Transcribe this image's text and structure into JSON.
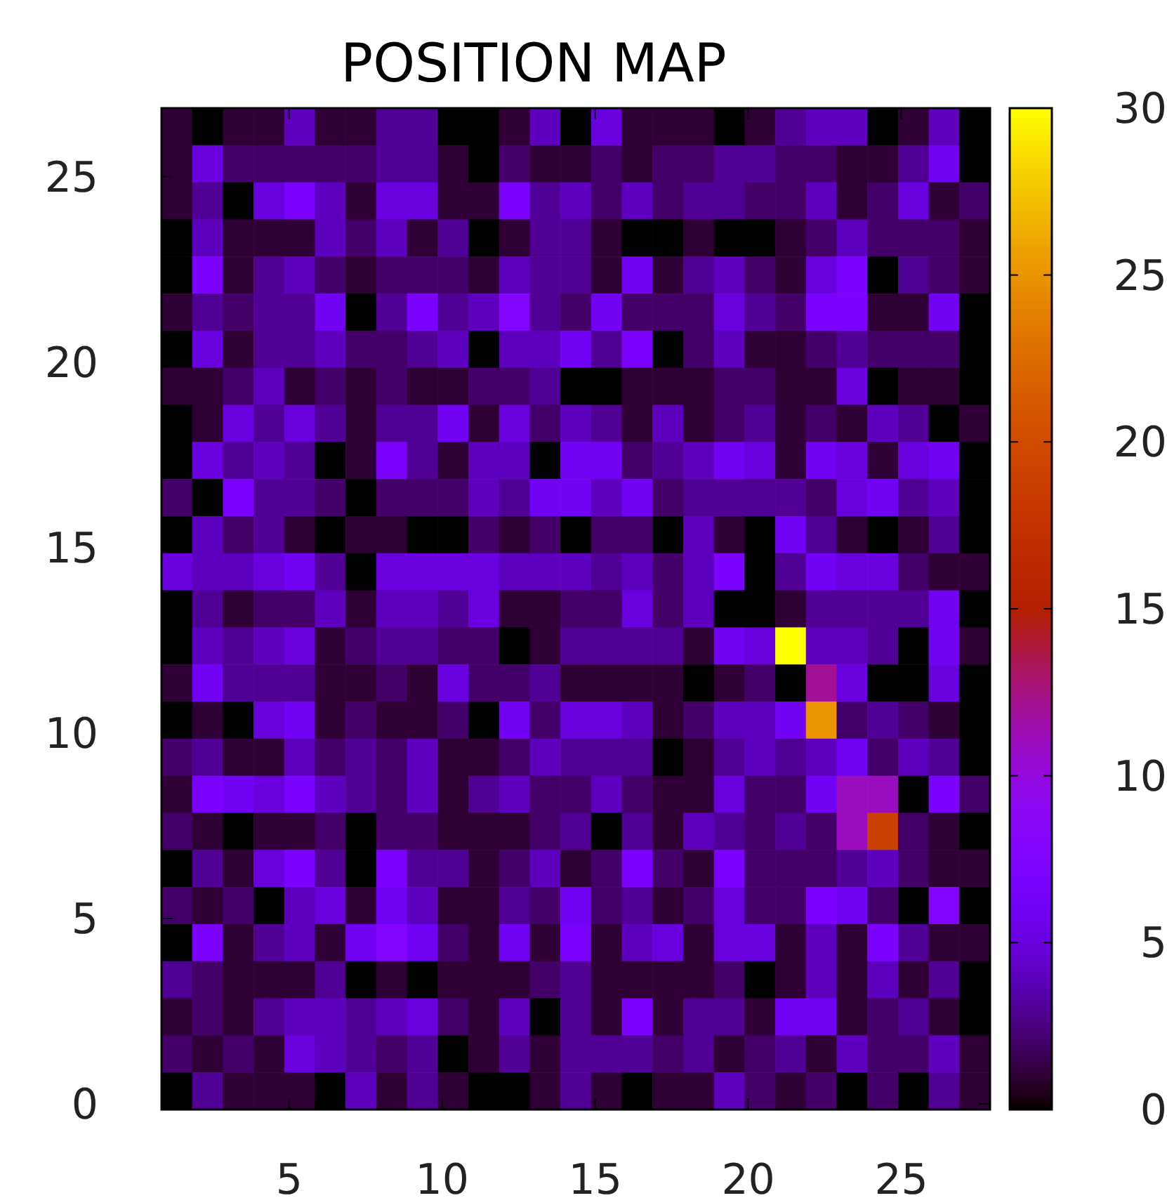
{
  "chart_data": {
    "type": "heatmap",
    "title": "POSITION MAP",
    "xlim": [
      0.83,
      27.9
    ],
    "ylim": [
      -0.15,
      26.85
    ],
    "xticks": [
      5,
      10,
      15,
      20,
      25
    ],
    "yticks": [
      0,
      5,
      10,
      15,
      20,
      25
    ],
    "clim": [
      0,
      30
    ],
    "cticks": [
      0,
      5,
      10,
      15,
      20,
      25,
      30
    ],
    "cells": [
      [
        1,
        0,
        1,
        1,
        4,
        1,
        1,
        3,
        3,
        0,
        0,
        1,
        4,
        0,
        5,
        1,
        1,
        1,
        0,
        1,
        3,
        4,
        4,
        0,
        1,
        4,
        0
      ],
      [
        1,
        5,
        2,
        2,
        2,
        2,
        2,
        3,
        3,
        1,
        0,
        2,
        1,
        1,
        2,
        1,
        2,
        2,
        3,
        3,
        2,
        2,
        1,
        1,
        3,
        6,
        0
      ],
      [
        1,
        3,
        0,
        5,
        7,
        4,
        1,
        5,
        5,
        1,
        1,
        7,
        3,
        4,
        2,
        4,
        2,
        3,
        3,
        2,
        2,
        4,
        1,
        2,
        5,
        1,
        2
      ],
      [
        0,
        4,
        1,
        1,
        1,
        4,
        2,
        4,
        1,
        3,
        0,
        1,
        3,
        3,
        1,
        0,
        0,
        1,
        0,
        0,
        1,
        2,
        4,
        2,
        2,
        2,
        1
      ],
      [
        0,
        7,
        1,
        3,
        4,
        2,
        1,
        2,
        2,
        2,
        1,
        4,
        3,
        3,
        1,
        6,
        1,
        3,
        4,
        2,
        1,
        5,
        7,
        0,
        3,
        2,
        1
      ],
      [
        1,
        3,
        2,
        3,
        3,
        6,
        0,
        3,
        7,
        3,
        4,
        8,
        3,
        2,
        6,
        2,
        2,
        2,
        5,
        3,
        2,
        7,
        7,
        1,
        1,
        6,
        0
      ],
      [
        0,
        5,
        1,
        3,
        3,
        4,
        2,
        2,
        3,
        4,
        0,
        4,
        4,
        6,
        3,
        7,
        0,
        2,
        4,
        1,
        1,
        2,
        3,
        2,
        2,
        2,
        0
      ],
      [
        1,
        1,
        2,
        4,
        1,
        2,
        1,
        2,
        1,
        1,
        2,
        2,
        3,
        0,
        0,
        1,
        1,
        1,
        2,
        2,
        1,
        1,
        5,
        0,
        1,
        1,
        0
      ],
      [
        0,
        1,
        5,
        3,
        5,
        3,
        1,
        3,
        3,
        6,
        1,
        5,
        2,
        4,
        3,
        1,
        4,
        1,
        2,
        3,
        1,
        2,
        1,
        4,
        3,
        0,
        1
      ],
      [
        0,
        5,
        3,
        4,
        3,
        0,
        1,
        7,
        3,
        1,
        4,
        4,
        0,
        6,
        6,
        2,
        3,
        4,
        6,
        5,
        1,
        6,
        5,
        1,
        5,
        6,
        0
      ],
      [
        2,
        0,
        7,
        3,
        3,
        2,
        0,
        2,
        2,
        2,
        4,
        3,
        6,
        6,
        4,
        6,
        2,
        3,
        3,
        3,
        3,
        2,
        5,
        6,
        3,
        4,
        0
      ],
      [
        0,
        4,
        2,
        3,
        1,
        0,
        1,
        1,
        0,
        0,
        2,
        1,
        2,
        0,
        2,
        2,
        0,
        4,
        1,
        0,
        6,
        3,
        1,
        0,
        1,
        3,
        0
      ],
      [
        5,
        4,
        4,
        5,
        6,
        3,
        0,
        5,
        5,
        5,
        5,
        4,
        4,
        4,
        3,
        4,
        2,
        4,
        7,
        0,
        3,
        6,
        5,
        5,
        2,
        1,
        1
      ],
      [
        0,
        3,
        1,
        2,
        2,
        4,
        1,
        4,
        4,
        3,
        5,
        1,
        1,
        2,
        2,
        5,
        2,
        4,
        0,
        0,
        1,
        3,
        3,
        3,
        3,
        6,
        0
      ],
      [
        0,
        4,
        3,
        4,
        5,
        1,
        2,
        3,
        3,
        2,
        2,
        0,
        1,
        3,
        3,
        3,
        3,
        1,
        6,
        5,
        30,
        4,
        4,
        3,
        0,
        6,
        1
      ],
      [
        1,
        6,
        3,
        3,
        3,
        1,
        1,
        2,
        1,
        5,
        2,
        2,
        3,
        1,
        1,
        1,
        1,
        0,
        1,
        2,
        0,
        12,
        5,
        0,
        0,
        5,
        0
      ],
      [
        0,
        1,
        0,
        5,
        6,
        1,
        2,
        1,
        1,
        2,
        0,
        6,
        2,
        5,
        5,
        4,
        1,
        2,
        4,
        4,
        6,
        25,
        2,
        3,
        2,
        1,
        0
      ],
      [
        2,
        3,
        1,
        1,
        4,
        2,
        3,
        2,
        4,
        1,
        1,
        2,
        4,
        3,
        3,
        3,
        0,
        1,
        3,
        4,
        3,
        4,
        6,
        2,
        4,
        3,
        0
      ],
      [
        1,
        7,
        6,
        5,
        7,
        4,
        3,
        2,
        4,
        1,
        3,
        4,
        2,
        2,
        4,
        2,
        1,
        1,
        5,
        2,
        2,
        6,
        11,
        11,
        0,
        7,
        2
      ],
      [
        2,
        1,
        0,
        1,
        1,
        2,
        0,
        2,
        2,
        1,
        1,
        1,
        2,
        3,
        0,
        3,
        1,
        4,
        3,
        2,
        3,
        2,
        11,
        19,
        2,
        1,
        0
      ],
      [
        0,
        3,
        1,
        5,
        7,
        3,
        0,
        7,
        3,
        3,
        1,
        2,
        4,
        1,
        2,
        7,
        2,
        1,
        7,
        2,
        2,
        2,
        3,
        4,
        2,
        1,
        1
      ],
      [
        2,
        1,
        2,
        0,
        4,
        5,
        1,
        6,
        4,
        1,
        1,
        3,
        2,
        6,
        2,
        3,
        1,
        2,
        5,
        2,
        2,
        7,
        6,
        2,
        0,
        8,
        0
      ],
      [
        0,
        7,
        1,
        3,
        4,
        1,
        6,
        8,
        6,
        2,
        1,
        6,
        1,
        7,
        1,
        4,
        5,
        1,
        5,
        5,
        1,
        4,
        1,
        7,
        3,
        1,
        1
      ],
      [
        3,
        2,
        1,
        1,
        1,
        3,
        0,
        1,
        0,
        1,
        1,
        1,
        2,
        3,
        1,
        1,
        1,
        1,
        2,
        0,
        1,
        4,
        1,
        4,
        1,
        3,
        0
      ],
      [
        1,
        2,
        1,
        3,
        4,
        4,
        3,
        4,
        5,
        2,
        1,
        4,
        0,
        3,
        1,
        7,
        1,
        3,
        3,
        1,
        6,
        6,
        1,
        2,
        3,
        1,
        0
      ],
      [
        2,
        1,
        2,
        1,
        5,
        4,
        3,
        2,
        3,
        0,
        1,
        3,
        1,
        3,
        3,
        3,
        2,
        3,
        1,
        2,
        3,
        1,
        4,
        2,
        2,
        4,
        1
      ],
      [
        0,
        3,
        1,
        1,
        1,
        0,
        4,
        1,
        3,
        1,
        0,
        0,
        1,
        3,
        1,
        0,
        1,
        1,
        4,
        2,
        1,
        2,
        0,
        2,
        0,
        3,
        1
      ]
    ]
  }
}
